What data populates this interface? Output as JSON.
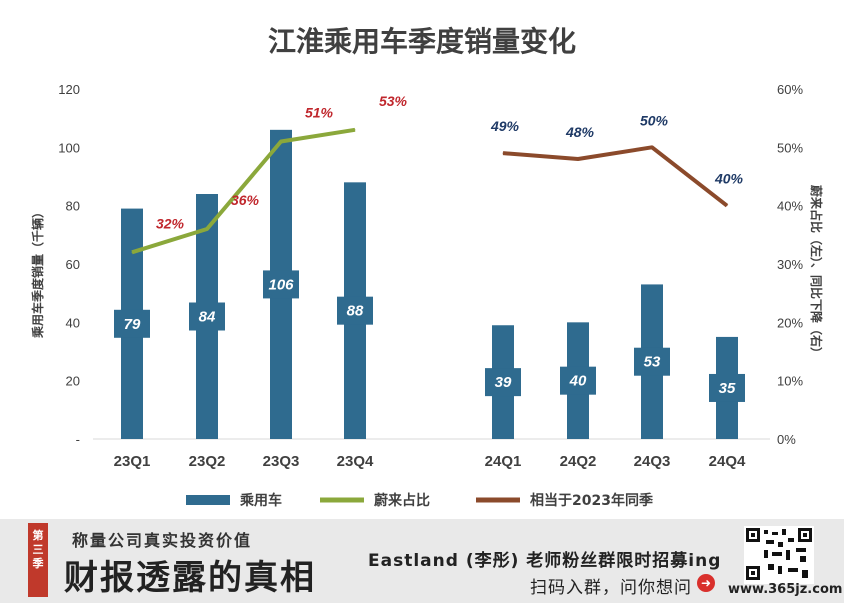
{
  "chart_data": {
    "type": "bar+line",
    "title": "江淮乘用车季度销量变化",
    "ylabel": "乘用车季度销量（千辆）",
    "y2label": "蔚来占比（左）、同比下降（右）",
    "ylim": [
      0,
      120
    ],
    "y2lim": [
      0,
      60
    ],
    "y_ticks": [
      "-",
      "20",
      "40",
      "60",
      "80",
      "100",
      "120"
    ],
    "y2_ticks": [
      "0%",
      "10%",
      "20%",
      "30%",
      "40%",
      "50%",
      "60%"
    ],
    "categories": [
      "23Q1",
      "23Q2",
      "23Q3",
      "23Q4",
      "24Q1",
      "24Q2",
      "24Q3",
      "24Q4"
    ],
    "series": [
      {
        "name": "乘用车",
        "type": "bar",
        "axis": "left",
        "color": "#2f6b8f",
        "values": [
          79,
          84,
          106,
          88,
          39,
          40,
          53,
          35
        ],
        "labels": [
          "79",
          "84",
          "106",
          "88",
          "39",
          "40",
          "53",
          "35"
        ]
      },
      {
        "name": "蔚来占比",
        "type": "line",
        "axis": "right",
        "color": "#8ba83b",
        "label_color": "#c0272d",
        "x": [
          "23Q1",
          "23Q2",
          "23Q3",
          "23Q4"
        ],
        "values": [
          32,
          36,
          51,
          53
        ],
        "labels": [
          "32%",
          "36%",
          "51%",
          "53%"
        ]
      },
      {
        "name": "相当于2023年同季",
        "type": "line",
        "axis": "right",
        "color": "#8b4a2b",
        "label_color": "#1f3a66",
        "x": [
          "24Q1",
          "24Q2",
          "24Q3",
          "24Q4"
        ],
        "values": [
          49,
          48,
          50,
          40
        ],
        "labels": [
          "49%",
          "48%",
          "50%",
          "40%"
        ]
      }
    ],
    "legend_position": "bottom",
    "grid": false
  },
  "footer": {
    "badge": "第三季",
    "subtitle": "称量公司真实投资价值",
    "brand": "财报透露的真相",
    "promo_line1": "Eastland (李彤) 老师粉丝群限时招募ing",
    "promo_line2": "扫码入群，问你想问",
    "arrow_icon": "arrow-right-icon",
    "watermark": "www.365jz.com"
  }
}
